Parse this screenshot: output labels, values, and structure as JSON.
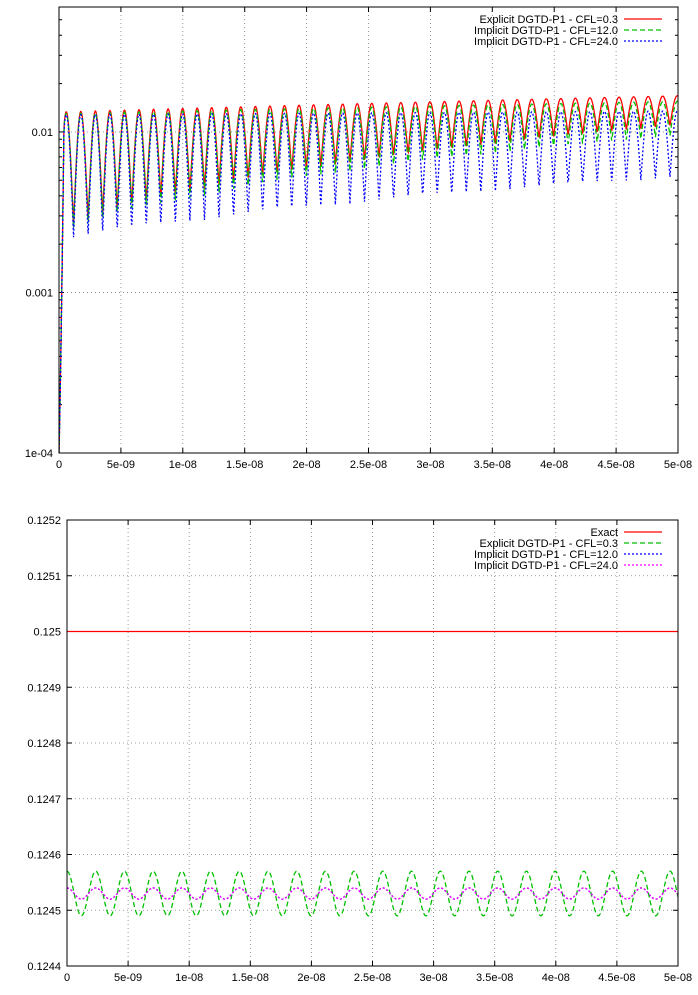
{
  "chart_data": [
    {
      "type": "line",
      "title": "",
      "xlabel": "",
      "ylabel": "",
      "y_scale": "log",
      "xlim": [
        0,
        5e-08
      ],
      "ylim": [
        0.0001,
        0.06
      ],
      "grid": true,
      "legend_position": "top-right",
      "x_ticks": [
        "0",
        "5e-09",
        "1e-08",
        "1.5e-08",
        "2e-08",
        "2.5e-08",
        "3e-08",
        "3.5e-08",
        "4e-08",
        "4.5e-08",
        "5e-08"
      ],
      "y_ticks": [
        "1e-04",
        "0.001",
        "0.01"
      ],
      "series": [
        {
          "name": "Explicit DGTD-P1 - CFL=0.3",
          "color": "#ff0000",
          "dash": "solid",
          "period": 2.35e-09,
          "peak_start": 0.0133,
          "peak_end": 0.0168,
          "trough_start": 0.0024,
          "trough_end": 0.011
        },
        {
          "name": "Implicit DGTD-P1 - CFL=12.0",
          "color": "#00c000",
          "dash": "dashed",
          "period": 2.35e-09,
          "peak_start": 0.013,
          "peak_end": 0.0155,
          "trough_start": 0.0023,
          "trough_end": 0.0095
        },
        {
          "name": "Implicit DGTD-P1 - CFL=24.0",
          "color": "#0000ff",
          "dash": "dotted",
          "period": 2.35e-09,
          "peak_start": 0.0128,
          "peak_end": 0.0135,
          "trough_start": 0.0021,
          "trough_end": 0.0052
        }
      ]
    },
    {
      "type": "line",
      "title": "",
      "xlabel": "",
      "ylabel": "",
      "xlim": [
        0,
        5e-08
      ],
      "ylim": [
        0.1244,
        0.1252
      ],
      "grid": true,
      "legend_position": "top-right",
      "x_ticks": [
        "0",
        "5e-09",
        "1e-08",
        "1.5e-08",
        "2e-08",
        "2.5e-08",
        "3e-08",
        "3.5e-08",
        "4e-08",
        "4.5e-08",
        "5e-08"
      ],
      "y_ticks": [
        "0.1244",
        "0.1245",
        "0.1246",
        "0.1247",
        "0.1248",
        "0.1249",
        "0.125",
        "0.1251",
        "0.1252"
      ],
      "series": [
        {
          "name": "Exact",
          "color": "#ff0000",
          "dash": "solid",
          "constant": 0.125
        },
        {
          "name": "Explicit DGTD-P1 - CFL=0.3",
          "color": "#00c000",
          "dash": "dashed",
          "period": 2.35e-09,
          "center": 0.12453,
          "amplitude": 4e-05
        },
        {
          "name": "Implicit DGTD-P1 - CFL=12.0",
          "color": "#0000ff",
          "dash": "dotted",
          "period": 2.35e-09,
          "center": 0.12453,
          "amplitude": 1e-05
        },
        {
          "name": "Implicit DGTD-P1 - CFL=24.0",
          "color": "#ff00ff",
          "dash": "dotted",
          "period": 2.35e-09,
          "center": 0.12453,
          "amplitude": 1e-05
        }
      ]
    }
  ]
}
